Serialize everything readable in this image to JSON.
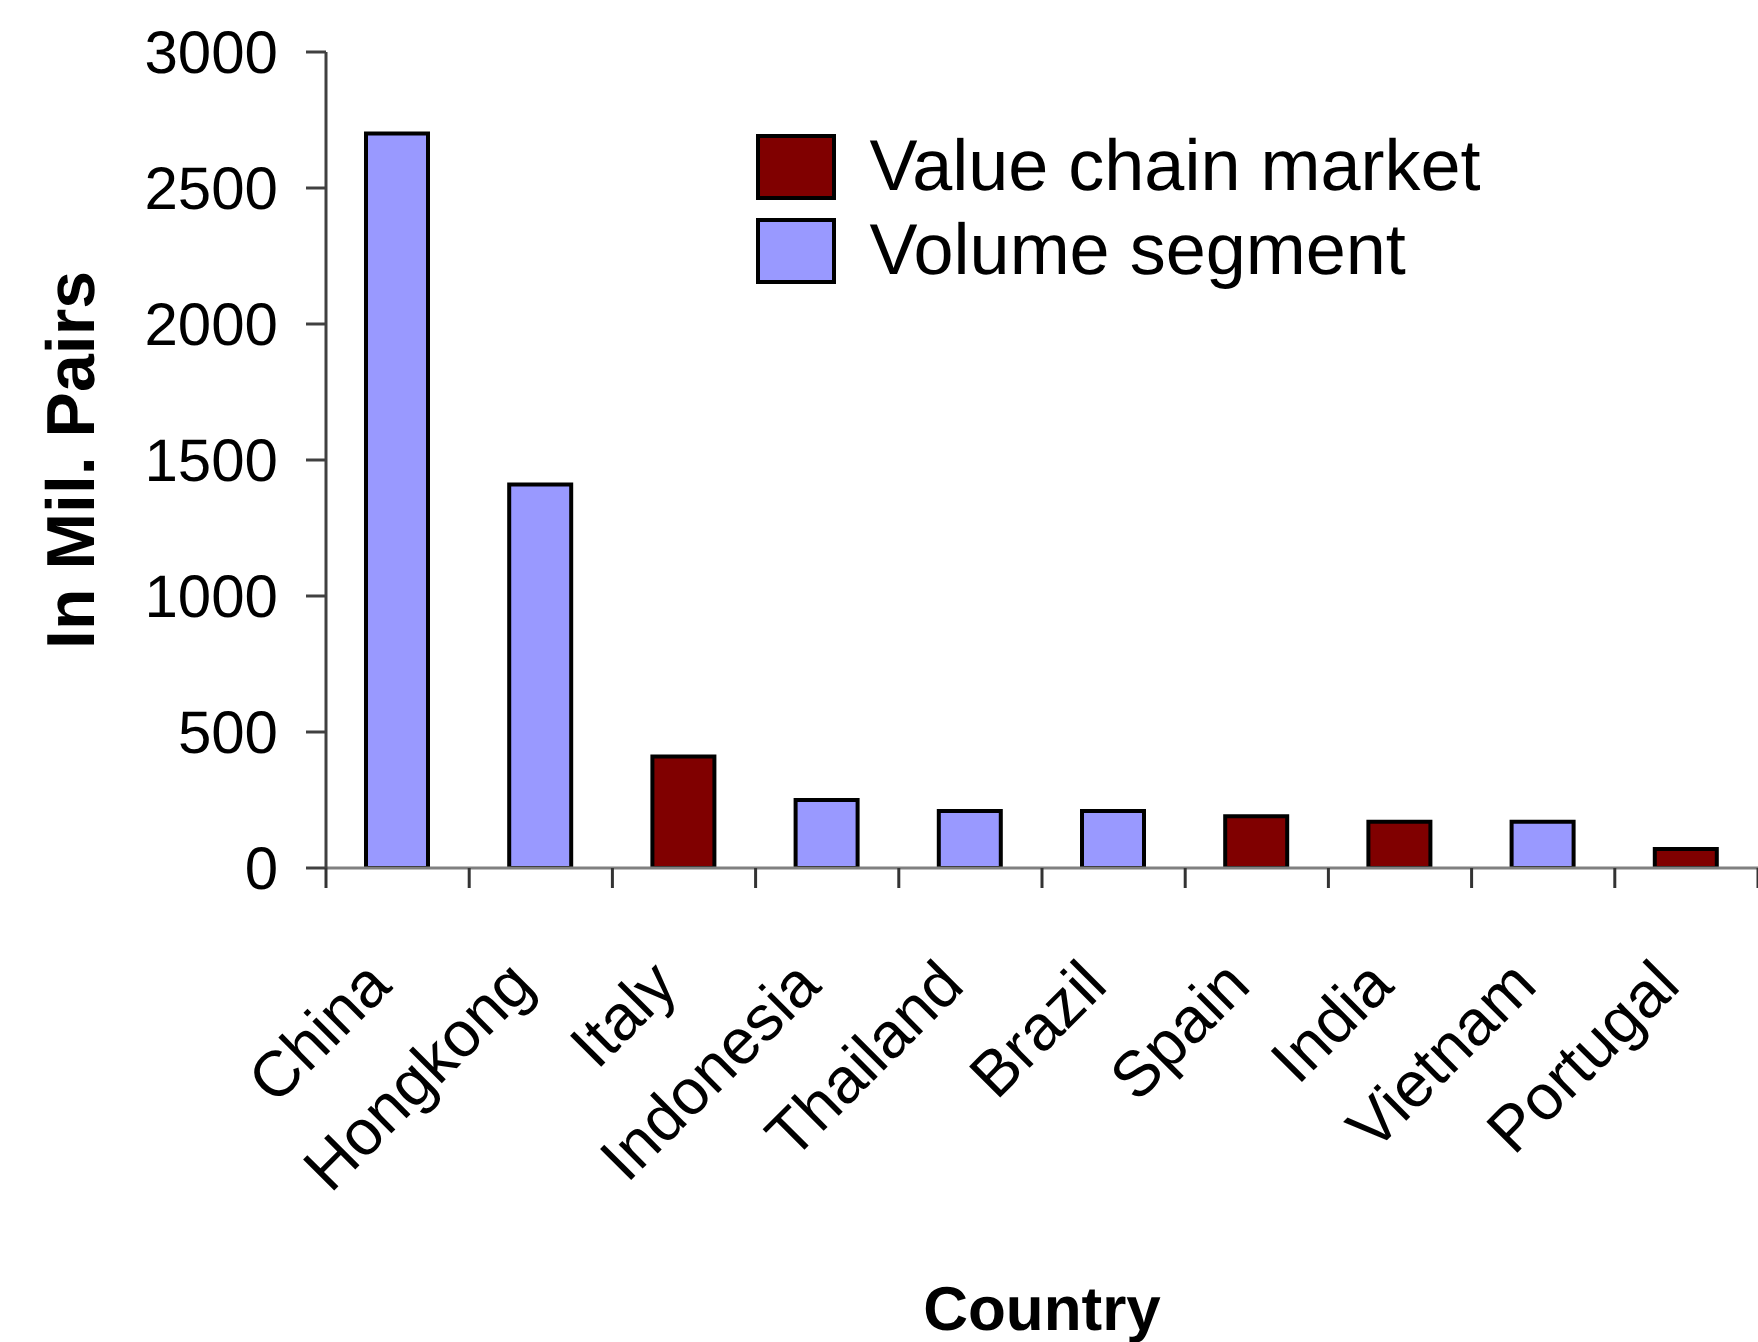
{
  "chart_data": {
    "type": "bar",
    "stacked": true,
    "xlabel": "Country",
    "ylabel": "In Mil. Pairs",
    "categories": [
      "China",
      "Hongkong",
      "Italy",
      "Indonesia",
      "Thailand",
      "Brazil",
      "Spain",
      "India",
      "Vietnam",
      "Portugal"
    ],
    "series": [
      {
        "name": "Value chain market",
        "color": "#800000",
        "values": [
          null,
          null,
          410,
          null,
          null,
          null,
          190,
          170,
          null,
          70
        ]
      },
      {
        "name": "Volume segment",
        "color": "#9999ff",
        "values": [
          2700,
          1410,
          null,
          250,
          210,
          210,
          null,
          null,
          170,
          null
        ]
      }
    ],
    "ylim": [
      0,
      3000
    ],
    "yticks": [
      0,
      500,
      1000,
      1500,
      2000,
      2500,
      3000
    ],
    "legend": "top"
  }
}
